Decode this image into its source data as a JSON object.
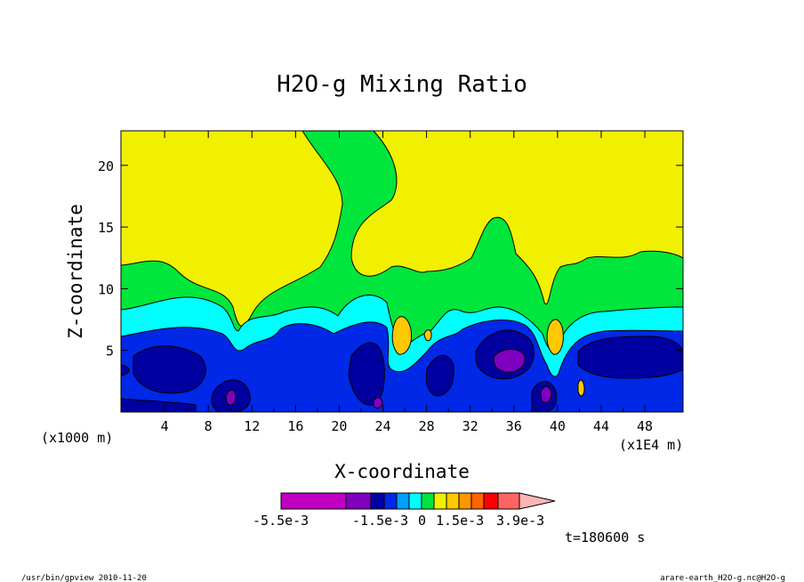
{
  "chart_data": {
    "type": "heatmap",
    "title": "H2O-g Mixing Ratio",
    "xlabel": "X-coordinate",
    "ylabel": "Z-coordinate",
    "x_unit_left": "(x1000 m)",
    "x_unit_right": "(x1E4 m)",
    "xlim": [
      0,
      51.5
    ],
    "ylim": [
      0,
      22.8
    ],
    "x_ticks": [
      4,
      8,
      12,
      16,
      20,
      24,
      28,
      32,
      36,
      40,
      44,
      48
    ],
    "y_ticks": [
      5,
      10,
      15,
      20
    ],
    "time_label": "t=180600 s",
    "colorbar": {
      "labels": [
        "-5.5e-3",
        "-1.5e-3",
        "0",
        "1.5e-3",
        "3.9e-3"
      ],
      "colors": [
        "#c000c0",
        "#8000c0",
        "#0000a0",
        "#0028e6",
        "#00a0ff",
        "#00ffff",
        "#00e63c",
        "#f0f000",
        "#ffc800",
        "#ff9600",
        "#ff6400",
        "#ff0000",
        "#ff6464",
        "#ffb4b4"
      ],
      "extend": "max"
    },
    "regions": [
      {
        "name": "upper-layer",
        "color": "#f0f000"
      },
      {
        "name": "middle-layer",
        "color": "#00e63c"
      },
      {
        "name": "cyan-layer",
        "color": "#00ffff"
      },
      {
        "name": "blue-layer",
        "color": "#0028e6"
      },
      {
        "name": "dark-blue-cores",
        "color": "#0000a0"
      },
      {
        "name": "purple-cores",
        "color": "#8000c0"
      },
      {
        "name": "orange-cores",
        "color": "#ffc800"
      }
    ]
  },
  "footer": {
    "left": "/usr/bin/gpview  2010-11-20",
    "right": "arare-earth_H2O-g.nc@H2O-g"
  }
}
